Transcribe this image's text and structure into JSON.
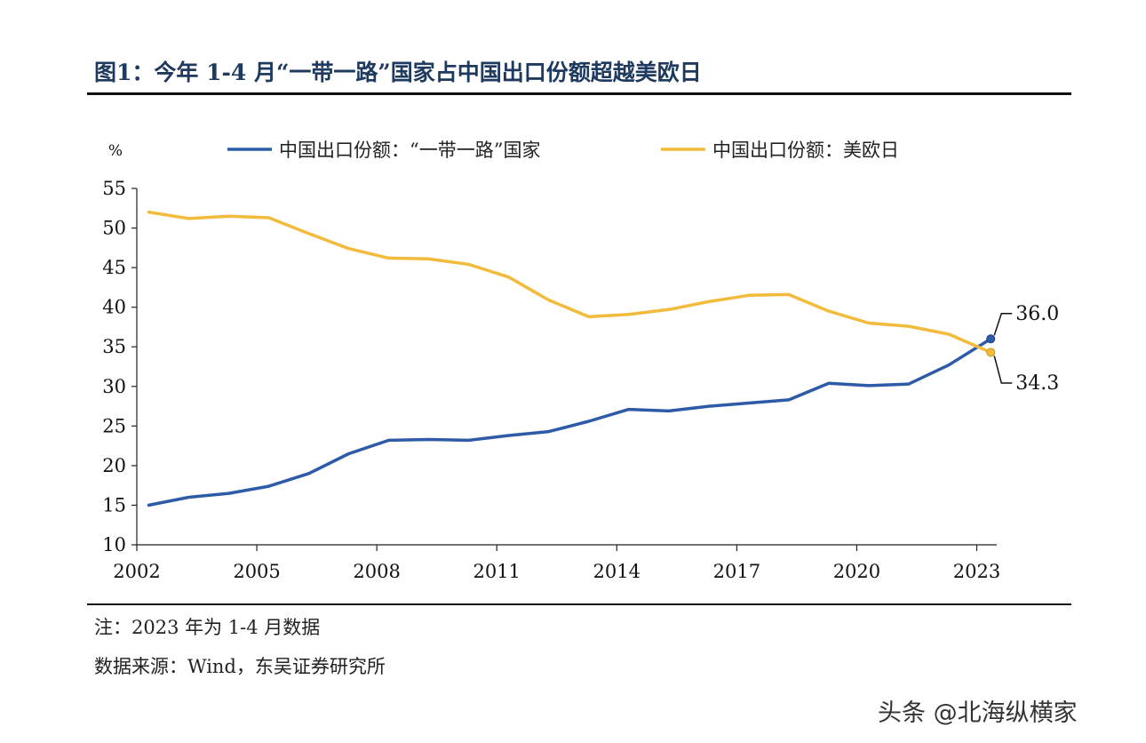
{
  "figure": {
    "title": "图1：今年 1-4 月“一带一路”国家占中国出口份额超越美欧日"
  },
  "chart_data": {
    "type": "line",
    "title": "图1：今年 1-4 月“一带一路”国家占中国出口份额超越美欧日",
    "ylabel": "%",
    "xlabel": "",
    "x": [
      2002,
      2003,
      2004,
      2005,
      2006,
      2007,
      2008,
      2009,
      2010,
      2011,
      2012,
      2013,
      2014,
      2015,
      2016,
      2017,
      2018,
      2019,
      2020,
      2021,
      2022,
      2023
    ],
    "xticks": [
      "2002",
      "2005",
      "2008",
      "2011",
      "2014",
      "2017",
      "2020",
      "2023"
    ],
    "yticks": [
      "10",
      "15",
      "20",
      "25",
      "30",
      "35",
      "40",
      "45",
      "50",
      "55"
    ],
    "ylim": [
      10,
      55
    ],
    "grid": false,
    "legend_position": "top",
    "series": [
      {
        "name": "中国出口份额：“一带一路”国家",
        "color": "#2e5ba8",
        "values": [
          15.0,
          16.0,
          16.5,
          17.4,
          19.0,
          21.5,
          23.2,
          23.3,
          23.2,
          23.8,
          24.3,
          25.6,
          27.1,
          26.9,
          27.5,
          27.9,
          28.3,
          30.4,
          30.1,
          30.3,
          32.7,
          36.0
        ],
        "end_label": "36.0"
      },
      {
        "name": "中国出口份额：美欧日",
        "color": "#f2bb3c",
        "values": [
          52.0,
          51.2,
          51.5,
          51.3,
          49.3,
          47.4,
          46.2,
          46.1,
          45.4,
          43.8,
          40.9,
          38.8,
          39.1,
          39.7,
          40.7,
          41.5,
          41.6,
          39.5,
          38.0,
          37.6,
          36.6,
          34.3
        ],
        "end_label": "34.3"
      }
    ]
  },
  "notes": {
    "note": "注：2023 年为 1-4 月数据",
    "source": "数据来源：Wind，东吴证券研究所"
  },
  "watermark": "头条 @北海纵横家"
}
